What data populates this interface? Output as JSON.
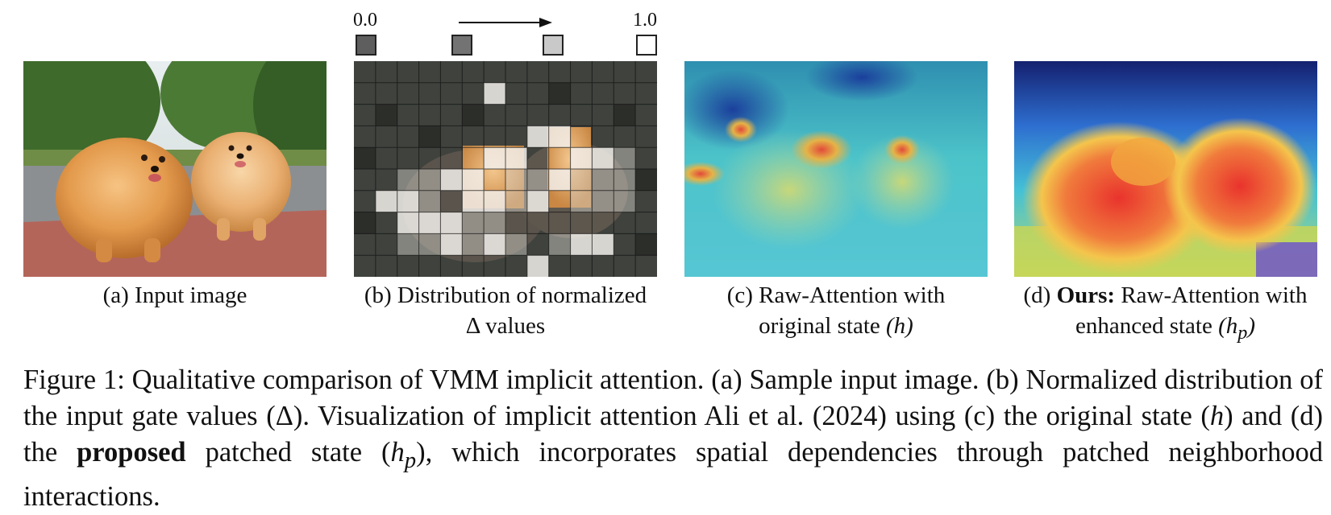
{
  "scale": {
    "min_label": "0.0",
    "max_label": "1.0",
    "swatch_values": [
      0.25,
      0.35,
      0.75,
      1.0
    ],
    "arrow_icon": "right-arrow-icon"
  },
  "panels": {
    "a": {
      "caption": "(a) Input image"
    },
    "b": {
      "caption_line1": "(b) Distribution of normalized",
      "caption_delta": "Δ",
      "caption_line2_rest": " values"
    },
    "c": {
      "caption_line1": "(c) Raw-Attention with",
      "caption_line2_prefix": "original state",
      "caption_math": "(h)"
    },
    "d": {
      "caption_prefix": "(d) ",
      "caption_bold": "Ours:",
      "caption_line1_rest": " Raw-Attention with",
      "caption_line2_prefix": "enhanced state",
      "caption_math": "(h",
      "caption_math_sub": "p",
      "caption_math_close": ")"
    }
  },
  "figure_caption": {
    "part1": "Figure 1: Qualitative comparison of VMM implicit attention. (a) Sample input image. (b) Normalized distribution of the input gate values (Δ). Visualization of implicit attention Ali et al. (2024) using (c) the original state (",
    "math_h": "h",
    "part2": ") and (d) the ",
    "bold_word": "proposed",
    "part3": " patched state (",
    "math_hp": "h",
    "math_hp_sub": "p",
    "part4": "), which incorporates spatial dependencies through patched neighborhood interactions."
  }
}
